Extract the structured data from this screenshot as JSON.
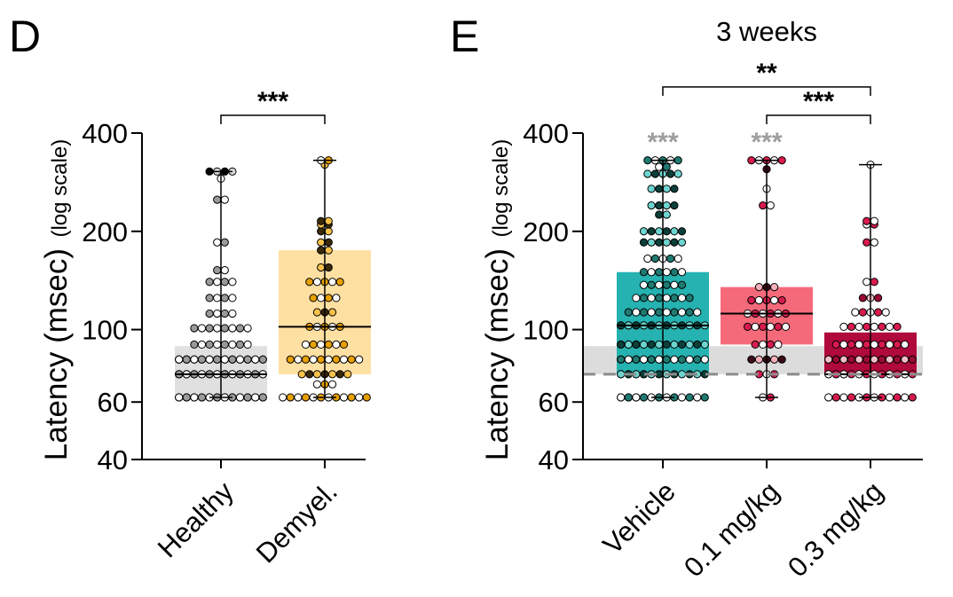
{
  "panels": [
    {
      "letter": "D",
      "title": "",
      "ylabel": "Latency (msec)",
      "ylabel_note": "(log scale)",
      "ticks": [
        40,
        60,
        100,
        200,
        400
      ],
      "categories": [
        "Healthy",
        "Demyel."
      ],
      "sig": [
        {
          "from": 0,
          "to": 1,
          "label": "***"
        }
      ],
      "grey_stars": []
    },
    {
      "letter": "E",
      "title": "3 weeks",
      "ylabel": "Latency (msec)",
      "ylabel_note": "(log scale)",
      "ticks": [
        40,
        60,
        100,
        200,
        400
      ],
      "categories": [
        "Vehicle",
        "0.1 mg/kg",
        "0.3 mg/kg"
      ],
      "sig": [
        {
          "from": 0,
          "to": 2,
          "label": "**"
        },
        {
          "from": 1,
          "to": 2,
          "label": "***"
        }
      ],
      "grey_stars": [
        {
          "group": 0,
          "label": "***"
        },
        {
          "group": 1,
          "label": "***"
        }
      ]
    }
  ],
  "colors": {
    "healthy_box": "#e0e0e0",
    "demyel_box": "#ffe0a3",
    "vehicle_box": "#25b2b0",
    "low_dose_box": "#f56a7a",
    "high_dose_box": "#b0093b",
    "reference_band": "#dcdcdc",
    "reference_line": "#8c8c8c",
    "sig_star_grey": "#9e9e9e"
  },
  "chart_data": [
    {
      "type": "box",
      "panel": "D",
      "title": "",
      "ylabel": "Latency (msec) (log scale)",
      "yscale": "log",
      "ylim": [
        40,
        400
      ],
      "categories": [
        "Healthy",
        "Demyel."
      ],
      "boxes": [
        {
          "name": "Healthy",
          "min": 62,
          "q1": 62,
          "median": 73,
          "q3": 89,
          "max": 305,
          "points": [
            62,
            62,
            62,
            62,
            62,
            62,
            62,
            62,
            62,
            62,
            62,
            62,
            62,
            62,
            62,
            62,
            62,
            62,
            62,
            62,
            62,
            62,
            62,
            62,
            62,
            62,
            73,
            73,
            73,
            73,
            73,
            73,
            73,
            73,
            73,
            73,
            73,
            73,
            73,
            73,
            73,
            73,
            73,
            73,
            73,
            73,
            73,
            73,
            73,
            73,
            73,
            73,
            81,
            81,
            81,
            81,
            81,
            81,
            81,
            81,
            81,
            81,
            81,
            81,
            81,
            81,
            81,
            81,
            81,
            81,
            81,
            81,
            81,
            81,
            81,
            81,
            81,
            81,
            90,
            90,
            90,
            90,
            90,
            90,
            90,
            90,
            101,
            101,
            101,
            101,
            101,
            101,
            101,
            101,
            112,
            112,
            112,
            112,
            125,
            125,
            125,
            125,
            140,
            140,
            140,
            140,
            152,
            152,
            185,
            185,
            250,
            250,
            290,
            305,
            305,
            305,
            305
          ]
        },
        {
          "name": "Demyel.",
          "min": 62,
          "q1": 73,
          "median": 102,
          "q3": 175,
          "max": 330,
          "points": [
            62,
            62,
            62,
            62,
            62,
            62,
            62,
            62,
            62,
            62,
            62,
            62,
            68,
            68,
            68,
            73,
            73,
            73,
            73,
            73,
            73,
            73,
            81,
            81,
            81,
            81,
            81,
            81,
            81,
            81,
            81,
            81,
            90,
            90,
            90,
            90,
            90,
            90,
            102,
            102,
            102,
            102,
            102,
            113,
            113,
            113,
            125,
            125,
            125,
            125,
            140,
            140,
            140,
            140,
            140,
            155,
            155,
            175,
            175,
            185,
            185,
            200,
            200,
            210,
            210,
            215,
            215,
            320,
            330,
            330
          ]
        }
      ],
      "significance": [
        {
          "groups": [
            "Healthy",
            "Demyel."
          ],
          "label": "***"
        }
      ]
    },
    {
      "type": "box",
      "panel": "E",
      "title": "3 weeks",
      "ylabel": "Latency (msec) (log scale)",
      "yscale": "log",
      "ylim": [
        40,
        400
      ],
      "categories": [
        "Vehicle",
        "0.1 mg/kg",
        "0.3 mg/kg"
      ],
      "reference_band": [
        73,
        89
      ],
      "reference_line": 73,
      "boxes": [
        {
          "name": "Vehicle",
          "min": 62,
          "q1": 73,
          "median": 103,
          "q3": 150,
          "max": 330,
          "points": [
            62,
            62,
            62,
            62,
            62,
            62,
            62,
            62,
            62,
            62,
            62,
            62,
            62,
            62,
            62,
            73,
            73,
            73,
            73,
            73,
            73,
            73,
            73,
            73,
            73,
            73,
            73,
            73,
            73,
            73,
            73,
            73,
            73,
            73,
            81,
            81,
            81,
            81,
            81,
            81,
            81,
            81,
            81,
            81,
            81,
            81,
            81,
            81,
            81,
            81,
            81,
            81,
            81,
            90,
            90,
            90,
            90,
            90,
            90,
            90,
            90,
            90,
            90,
            90,
            90,
            90,
            90,
            90,
            90,
            103,
            103,
            103,
            103,
            103,
            103,
            103,
            103,
            103,
            103,
            103,
            103,
            103,
            103,
            103,
            103,
            103,
            113,
            113,
            113,
            113,
            113,
            113,
            113,
            113,
            113,
            113,
            125,
            125,
            125,
            125,
            125,
            125,
            125,
            125,
            137,
            137,
            137,
            137,
            137,
            137,
            150,
            150,
            150,
            150,
            150,
            150,
            165,
            165,
            165,
            165,
            165,
            185,
            185,
            185,
            185,
            185,
            185,
            200,
            200,
            200,
            200,
            200,
            200,
            225,
            225,
            240,
            240,
            240,
            240,
            270,
            270,
            270,
            270,
            300,
            300,
            300,
            300,
            300,
            315,
            315,
            330,
            330,
            330,
            330,
            330
          ]
        },
        {
          "name": "0.1 mg/kg",
          "min": 62,
          "q1": 90,
          "median": 112,
          "q3": 135,
          "max": 330,
          "points": [
            62,
            62,
            73,
            73,
            73,
            81,
            81,
            81,
            81,
            81,
            90,
            90,
            90,
            90,
            102,
            102,
            102,
            102,
            102,
            102,
            112,
            112,
            112,
            112,
            112,
            112,
            123,
            123,
            123,
            123,
            123,
            135,
            135,
            135,
            240,
            240,
            270,
            310,
            330,
            330,
            330,
            330,
            330
          ]
        },
        {
          "name": "0.3 mg/kg",
          "min": 62,
          "q1": 73,
          "median": 73,
          "q3": 98,
          "max": 320,
          "points": [
            62,
            62,
            62,
            62,
            62,
            62,
            62,
            62,
            62,
            62,
            62,
            62,
            73,
            73,
            73,
            73,
            73,
            73,
            73,
            73,
            73,
            73,
            73,
            73,
            73,
            73,
            73,
            81,
            81,
            81,
            81,
            81,
            81,
            81,
            81,
            81,
            81,
            81,
            81,
            81,
            81,
            81,
            90,
            90,
            90,
            90,
            90,
            90,
            90,
            90,
            90,
            90,
            102,
            102,
            102,
            102,
            102,
            102,
            102,
            102,
            113,
            113,
            113,
            113,
            113,
            125,
            125,
            125,
            140,
            140,
            185,
            185,
            210,
            210,
            215,
            215,
            320
          ]
        }
      ],
      "significance": [
        {
          "groups": [
            "Vehicle",
            "0.3 mg/kg"
          ],
          "label": "**"
        },
        {
          "groups": [
            "0.1 mg/kg",
            "0.3 mg/kg"
          ],
          "label": "***"
        },
        {
          "groups": [
            "Vehicle"
          ],
          "label": "***",
          "color": "grey"
        },
        {
          "groups": [
            "0.1 mg/kg"
          ],
          "label": "***",
          "color": "grey"
        }
      ]
    }
  ]
}
